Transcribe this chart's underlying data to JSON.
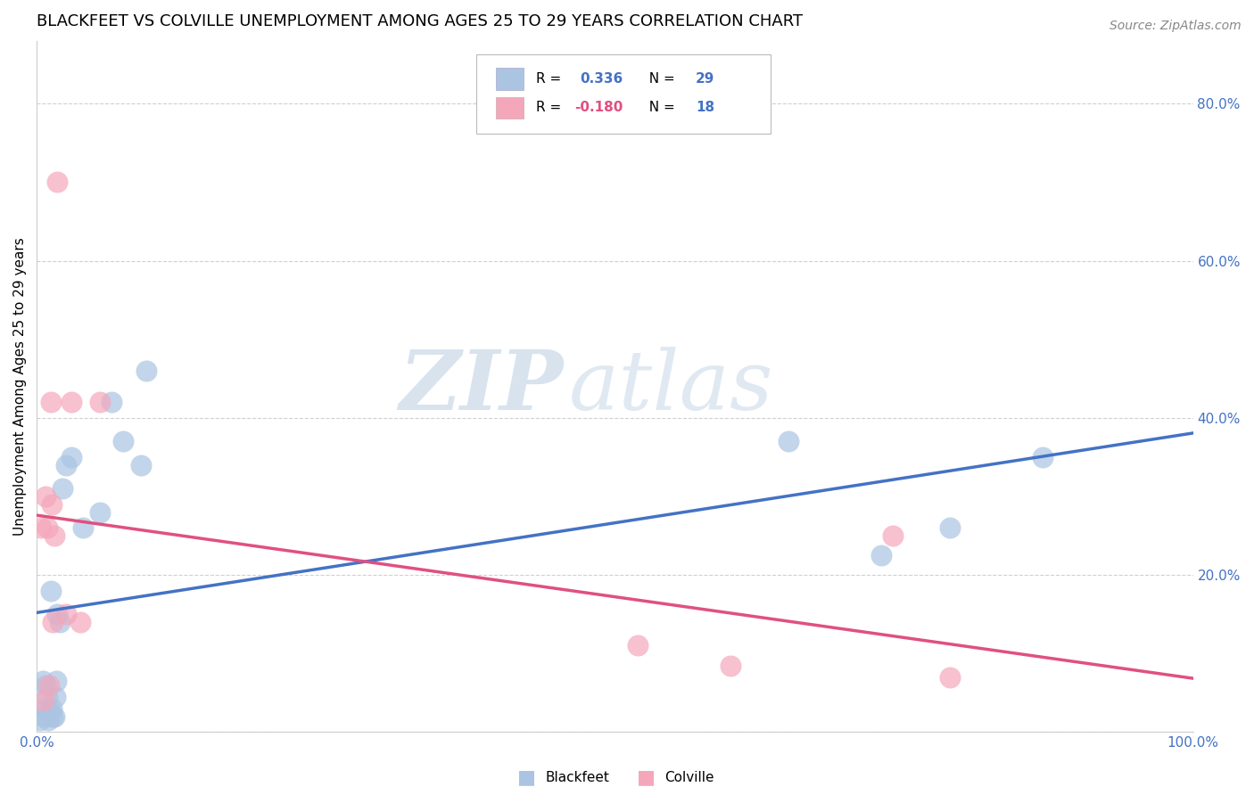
{
  "title": "BLACKFEET VS COLVILLE UNEMPLOYMENT AMONG AGES 25 TO 29 YEARS CORRELATION CHART",
  "source": "Source: ZipAtlas.com",
  "ylabel": "Unemployment Among Ages 25 to 29 years",
  "ytick_labels": [
    "",
    "20.0%",
    "40.0%",
    "60.0%",
    "80.0%"
  ],
  "ytick_values": [
    0,
    0.2,
    0.4,
    0.6,
    0.8
  ],
  "xlim": [
    0,
    1.0
  ],
  "ylim": [
    0,
    0.88
  ],
  "blackfeet_R": 0.336,
  "blackfeet_N": 29,
  "colville_R": -0.18,
  "colville_N": 18,
  "blackfeet_color": "#aac4e2",
  "blackfeet_line_color": "#4472c4",
  "colville_color": "#f4a7bb",
  "colville_line_color": "#e05080",
  "blackfeet_x": [
    0.003,
    0.005,
    0.006,
    0.007,
    0.008,
    0.009,
    0.01,
    0.011,
    0.012,
    0.013,
    0.014,
    0.015,
    0.016,
    0.017,
    0.018,
    0.02,
    0.022,
    0.025,
    0.03,
    0.04,
    0.055,
    0.065,
    0.075,
    0.09,
    0.095,
    0.65,
    0.73,
    0.79,
    0.87
  ],
  "blackfeet_y": [
    0.015,
    0.065,
    0.02,
    0.03,
    0.06,
    0.045,
    0.015,
    0.025,
    0.18,
    0.03,
    0.02,
    0.02,
    0.045,
    0.065,
    0.15,
    0.14,
    0.31,
    0.34,
    0.35,
    0.26,
    0.28,
    0.42,
    0.37,
    0.34,
    0.46,
    0.37,
    0.225,
    0.26,
    0.35
  ],
  "colville_x": [
    0.004,
    0.006,
    0.008,
    0.009,
    0.011,
    0.012,
    0.013,
    0.014,
    0.015,
    0.018,
    0.025,
    0.03,
    0.038,
    0.055,
    0.52,
    0.6,
    0.74,
    0.79
  ],
  "colville_y": [
    0.26,
    0.04,
    0.3,
    0.26,
    0.06,
    0.42,
    0.29,
    0.14,
    0.25,
    0.7,
    0.15,
    0.42,
    0.14,
    0.42,
    0.11,
    0.085,
    0.25,
    0.07
  ],
  "grid_color": "#d0d0d0",
  "background_color": "#ffffff",
  "title_fontsize": 13,
  "axis_label_fontsize": 11,
  "tick_fontsize": 11,
  "source_fontsize": 10
}
